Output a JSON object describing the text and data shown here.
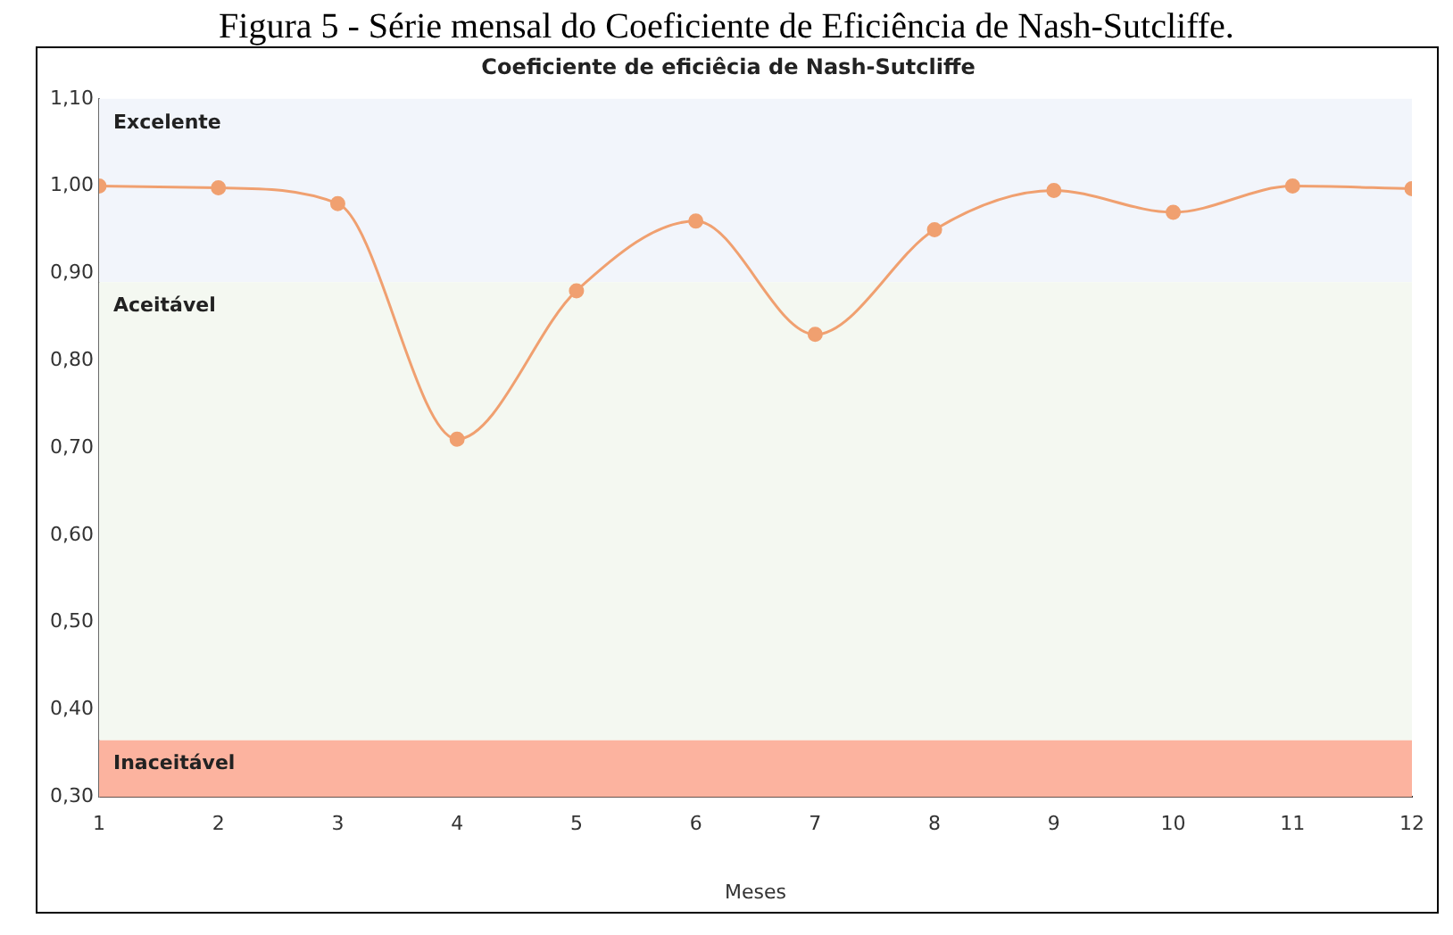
{
  "chart_data": {
    "type": "line",
    "title": "Coeficiente de eficiêcia de Nash-Sutcliffe",
    "xlabel": "Meses",
    "annotations": [
      "Figura 5 - Série mensal do Coeficiente de Eficiência de Nash-Sutcliffe."
    ],
    "x": [
      1,
      2,
      3,
      4,
      5,
      6,
      7,
      8,
      9,
      10,
      11,
      12
    ],
    "series": [
      {
        "color": "#f0a070",
        "values": [
          1.0,
          0.998,
          0.98,
          0.71,
          0.88,
          0.96,
          0.83,
          0.95,
          0.995,
          0.97,
          1.0,
          0.997
        ]
      }
    ],
    "xlim": [
      1,
      12
    ],
    "xticks": [
      1,
      2,
      3,
      4,
      5,
      6,
      7,
      8,
      9,
      10,
      11,
      12
    ],
    "ylim": [
      0.3,
      1.1
    ],
    "yticks": [
      {
        "value": 0.3,
        "label": "0,30"
      },
      {
        "value": 0.4,
        "label": "0,40"
      },
      {
        "value": 0.5,
        "label": "0,50"
      },
      {
        "value": 0.6,
        "label": "0,60"
      },
      {
        "value": 0.7,
        "label": "0,70"
      },
      {
        "value": 0.8,
        "label": "0,80"
      },
      {
        "value": 0.9,
        "label": "0,90"
      },
      {
        "value": 1.0,
        "label": "1,00"
      },
      {
        "value": 1.1,
        "label": "1,10"
      }
    ],
    "bands": [
      {
        "axis": "y",
        "from": 0.89,
        "to": 1.1,
        "label": "Excelente",
        "color": "#f2f5fb"
      },
      {
        "axis": "y",
        "from": 0.365,
        "to": 0.89,
        "label": "Aceitável",
        "color": "#f4f8f1"
      },
      {
        "axis": "y",
        "from": 0.3,
        "to": 0.365,
        "label": "Inaceitável",
        "color": "#fcb39f"
      }
    ],
    "grid": false,
    "legend": false,
    "marker": "circle",
    "line_style": "solid"
  }
}
